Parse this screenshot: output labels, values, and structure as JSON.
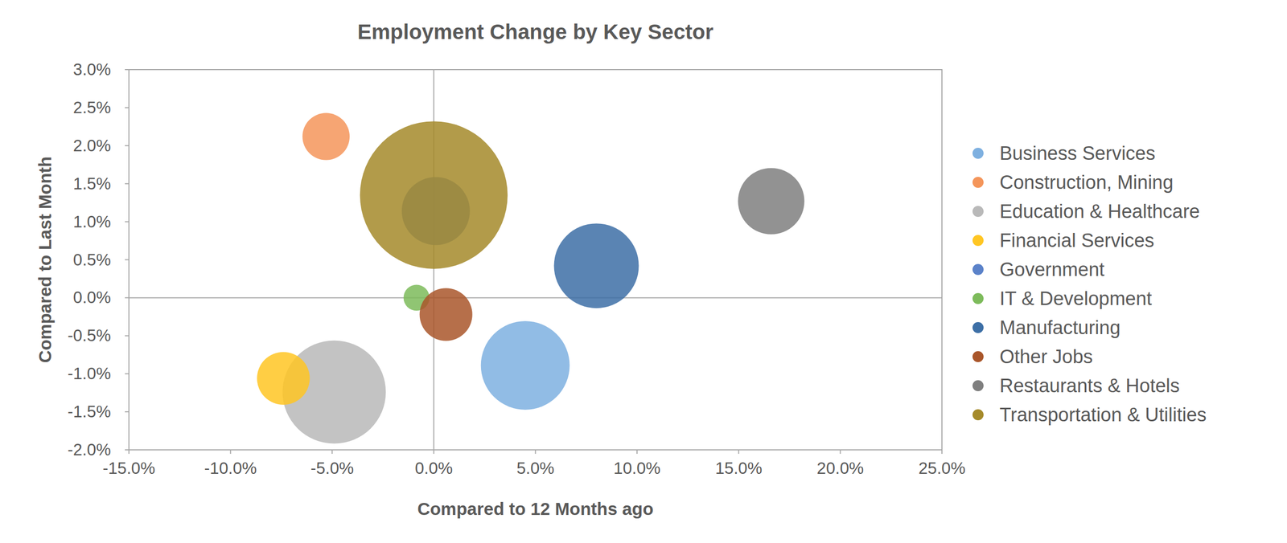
{
  "chart_data": {
    "type": "bubble",
    "title": "Employment Change by Key Sector",
    "x_label": "Compared to 12 Months ago",
    "y_label": "Compared to Last Month",
    "xlim": [
      -15,
      25
    ],
    "xticks": [
      {
        "value": -15,
        "label": "-15.0%"
      },
      {
        "value": -10,
        "label": "-10.0%"
      },
      {
        "value": -5,
        "label": "-5.0%"
      },
      {
        "value": 0,
        "label": "0.0%"
      },
      {
        "value": 5,
        "label": "5.0%"
      },
      {
        "value": 10,
        "label": "10.0%"
      },
      {
        "value": 15,
        "label": "15.0%"
      },
      {
        "value": 20,
        "label": "20.0%"
      },
      {
        "value": 25,
        "label": "25.0%"
      }
    ],
    "ylim": [
      -2,
      3
    ],
    "yticks": [
      {
        "value": -2,
        "label": "-2.0%"
      },
      {
        "value": -1.5,
        "label": "-1.5%"
      },
      {
        "value": -1,
        "label": "-1.0%"
      },
      {
        "value": -0.5,
        "label": "-0.5%"
      },
      {
        "value": 0,
        "label": "0.0%"
      },
      {
        "value": 0.5,
        "label": "0.5%"
      },
      {
        "value": 1,
        "label": "1.0%"
      },
      {
        "value": 1.5,
        "label": "1.5%"
      },
      {
        "value": 2,
        "label": "2.0%"
      },
      {
        "value": 2.5,
        "label": "2.5%"
      },
      {
        "value": 3,
        "label": "3.0%"
      }
    ],
    "grid": false,
    "legend": "right",
    "series": [
      {
        "name": "Business Services",
        "color": "#7eb0e0",
        "x": [
          4.5
        ],
        "values": [
          -0.89
        ],
        "size": [
          34
        ]
      },
      {
        "name": "Construction, Mining",
        "color": "#f4955a",
        "x": [
          -5.3
        ],
        "values": [
          2.12
        ],
        "size": [
          9.6
        ]
      },
      {
        "name": "Education & Healthcare",
        "color": "#b9b9b9",
        "x": [
          -4.9
        ],
        "values": [
          -1.24
        ],
        "size": [
          46
        ]
      },
      {
        "name": "Financial Services",
        "color": "#ffc623",
        "x": [
          -7.4
        ],
        "values": [
          -1.06
        ],
        "size": [
          12
        ]
      },
      {
        "name": "Government",
        "color": "#5b82c9",
        "x": [
          0.1
        ],
        "values": [
          1.14
        ],
        "size": [
          20
        ]
      },
      {
        "name": "IT & Development",
        "color": "#7dbb5b",
        "x": [
          -0.85
        ],
        "values": [
          0.0
        ],
        "size": [
          2.9
        ]
      },
      {
        "name": "Manufacturing",
        "color": "#3d6fa6",
        "x": [
          8.0
        ],
        "values": [
          0.42
        ],
        "size": [
          31
        ]
      },
      {
        "name": "Other Jobs",
        "color": "#a9562a",
        "x": [
          0.6
        ],
        "values": [
          -0.22
        ],
        "size": [
          12
        ]
      },
      {
        "name": "Restaurants & Hotels",
        "color": "#7f7f7f",
        "x": [
          16.6
        ],
        "values": [
          1.27
        ],
        "size": [
          19
        ]
      },
      {
        "name": "Transportation & Utilities",
        "color": "#a58a2a",
        "x": [
          0.0
        ],
        "values": [
          1.35
        ],
        "size": [
          94
        ]
      }
    ]
  }
}
